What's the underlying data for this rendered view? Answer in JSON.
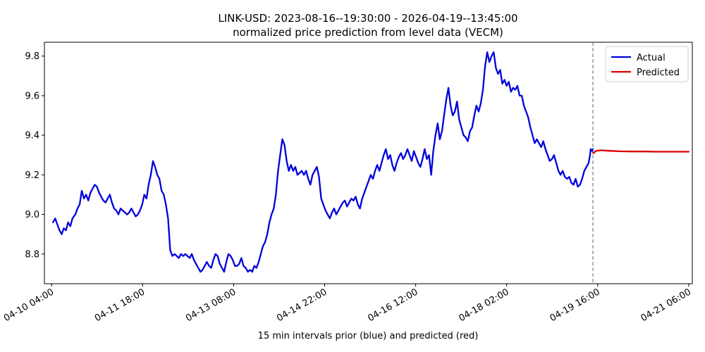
{
  "chart_data": {
    "type": "line",
    "title": "LINK-USD: 2023-08-16--19:30:00 - 2026-04-19--13:45:00",
    "subtitle": "normalized price prediction from level data (VECM)",
    "xlabel": "15 min intervals prior (blue) and predicted (red)",
    "ylabel": "",
    "x_tick_labels": [
      "04-10 04:00",
      "04-11 18:00",
      "04-13 08:00",
      "04-14 22:00",
      "04-16 12:00",
      "04-18 02:00",
      "04-19 16:00",
      "04-21 06:00"
    ],
    "y_ticks": [
      8.8,
      9.0,
      9.2,
      9.4,
      9.6,
      9.8
    ],
    "ylim": [
      8.65,
      9.87
    ],
    "x_index_range": [
      -12,
      792
    ],
    "x_tick_index": [
      0,
      152,
      304,
      456,
      608,
      760,
      912,
      1064
    ],
    "forecast_start_index": 904,
    "legend": {
      "position": "top-right",
      "entries": [
        "Actual",
        "Predicted"
      ]
    },
    "grid": false,
    "series": [
      {
        "name": "Actual",
        "color": "#0000dd",
        "points": [
          [
            2,
            8.96
          ],
          [
            5,
            8.98
          ],
          [
            8,
            8.95
          ],
          [
            11,
            8.92
          ],
          [
            14,
            8.9
          ],
          [
            17,
            8.93
          ],
          [
            20,
            8.92
          ],
          [
            23,
            8.96
          ],
          [
            26,
            8.94
          ],
          [
            29,
            8.98
          ],
          [
            33,
            9.0
          ],
          [
            36,
            9.03
          ],
          [
            39,
            9.05
          ],
          [
            42,
            9.12
          ],
          [
            45,
            9.08
          ],
          [
            48,
            9.1
          ],
          [
            51,
            9.07
          ],
          [
            54,
            9.11
          ],
          [
            57,
            9.13
          ],
          [
            60,
            9.15
          ],
          [
            63,
            9.14
          ],
          [
            66,
            9.11
          ],
          [
            69,
            9.09
          ],
          [
            72,
            9.07
          ],
          [
            75,
            9.06
          ],
          [
            78,
            9.08
          ],
          [
            81,
            9.1
          ],
          [
            84,
            9.06
          ],
          [
            87,
            9.03
          ],
          [
            90,
            9.02
          ],
          [
            93,
            9.0
          ],
          [
            96,
            9.03
          ],
          [
            99,
            9.02
          ],
          [
            102,
            9.01
          ],
          [
            105,
            9.0
          ],
          [
            108,
            9.01
          ],
          [
            111,
            9.03
          ],
          [
            114,
            9.01
          ],
          [
            117,
            8.99
          ],
          [
            120,
            9.0
          ],
          [
            123,
            9.02
          ],
          [
            126,
            9.05
          ],
          [
            129,
            9.1
          ],
          [
            132,
            9.08
          ],
          [
            135,
            9.15
          ],
          [
            138,
            9.2
          ],
          [
            141,
            9.27
          ],
          [
            144,
            9.24
          ],
          [
            147,
            9.2
          ],
          [
            150,
            9.18
          ],
          [
            153,
            9.12
          ],
          [
            156,
            9.1
          ],
          [
            159,
            9.05
          ],
          [
            162,
            8.98
          ],
          [
            165,
            8.82
          ],
          [
            168,
            8.79
          ],
          [
            171,
            8.8
          ],
          [
            174,
            8.79
          ],
          [
            177,
            8.78
          ],
          [
            180,
            8.8
          ],
          [
            183,
            8.79
          ],
          [
            186,
            8.8
          ],
          [
            189,
            8.79
          ],
          [
            192,
            8.78
          ],
          [
            195,
            8.8
          ],
          [
            198,
            8.77
          ],
          [
            201,
            8.75
          ],
          [
            204,
            8.73
          ],
          [
            207,
            8.71
          ],
          [
            210,
            8.72
          ],
          [
            213,
            8.74
          ],
          [
            216,
            8.76
          ],
          [
            219,
            8.74
          ],
          [
            222,
            8.73
          ],
          [
            225,
            8.77
          ],
          [
            228,
            8.8
          ],
          [
            231,
            8.79
          ],
          [
            234,
            8.75
          ],
          [
            237,
            8.73
          ],
          [
            240,
            8.71
          ],
          [
            243,
            8.76
          ],
          [
            246,
            8.8
          ],
          [
            249,
            8.79
          ],
          [
            252,
            8.77
          ],
          [
            255,
            8.74
          ],
          [
            258,
            8.74
          ],
          [
            261,
            8.75
          ],
          [
            264,
            8.78
          ],
          [
            267,
            8.74
          ],
          [
            270,
            8.73
          ],
          [
            273,
            8.71
          ],
          [
            276,
            8.72
          ],
          [
            279,
            8.71
          ],
          [
            282,
            8.74
          ],
          [
            285,
            8.73
          ],
          [
            288,
            8.76
          ],
          [
            291,
            8.8
          ],
          [
            294,
            8.84
          ],
          [
            297,
            8.86
          ],
          [
            300,
            8.9
          ],
          [
            303,
            8.96
          ],
          [
            306,
            9.0
          ],
          [
            309,
            9.03
          ],
          [
            312,
            9.1
          ],
          [
            315,
            9.22
          ],
          [
            318,
            9.3
          ],
          [
            321,
            9.38
          ],
          [
            324,
            9.35
          ],
          [
            327,
            9.27
          ],
          [
            330,
            9.22
          ],
          [
            333,
            9.25
          ],
          [
            336,
            9.22
          ],
          [
            339,
            9.24
          ],
          [
            342,
            9.2
          ],
          [
            345,
            9.21
          ],
          [
            348,
            9.22
          ],
          [
            351,
            9.2
          ],
          [
            354,
            9.22
          ],
          [
            357,
            9.18
          ],
          [
            360,
            9.15
          ],
          [
            363,
            9.2
          ],
          [
            366,
            9.22
          ],
          [
            369,
            9.24
          ],
          [
            372,
            9.19
          ],
          [
            375,
            9.08
          ],
          [
            378,
            9.05
          ],
          [
            381,
            9.02
          ],
          [
            384,
            9.0
          ],
          [
            387,
            8.98
          ],
          [
            390,
            9.01
          ],
          [
            393,
            9.03
          ],
          [
            396,
            9.0
          ],
          [
            399,
            9.02
          ],
          [
            402,
            9.04
          ],
          [
            405,
            9.06
          ],
          [
            408,
            9.07
          ],
          [
            411,
            9.04
          ],
          [
            414,
            9.06
          ],
          [
            417,
            9.08
          ],
          [
            420,
            9.07
          ],
          [
            423,
            9.09
          ],
          [
            426,
            9.05
          ],
          [
            429,
            9.03
          ],
          [
            432,
            9.08
          ],
          [
            435,
            9.11
          ],
          [
            438,
            9.14
          ],
          [
            441,
            9.17
          ],
          [
            444,
            9.2
          ],
          [
            447,
            9.18
          ],
          [
            450,
            9.22
          ],
          [
            453,
            9.25
          ],
          [
            456,
            9.22
          ],
          [
            459,
            9.26
          ],
          [
            462,
            9.3
          ],
          [
            465,
            9.33
          ],
          [
            468,
            9.28
          ],
          [
            471,
            9.3
          ],
          [
            474,
            9.25
          ],
          [
            477,
            9.22
          ],
          [
            480,
            9.26
          ],
          [
            483,
            9.29
          ],
          [
            486,
            9.31
          ],
          [
            489,
            9.28
          ],
          [
            492,
            9.3
          ],
          [
            495,
            9.33
          ],
          [
            498,
            9.3
          ],
          [
            501,
            9.27
          ],
          [
            504,
            9.32
          ],
          [
            507,
            9.29
          ],
          [
            510,
            9.26
          ],
          [
            513,
            9.24
          ],
          [
            516,
            9.28
          ],
          [
            519,
            9.33
          ],
          [
            522,
            9.28
          ],
          [
            525,
            9.3
          ],
          [
            528,
            9.2
          ],
          [
            531,
            9.32
          ],
          [
            534,
            9.4
          ],
          [
            537,
            9.46
          ],
          [
            540,
            9.38
          ],
          [
            543,
            9.42
          ],
          [
            546,
            9.5
          ],
          [
            549,
            9.58
          ],
          [
            552,
            9.64
          ],
          [
            555,
            9.55
          ],
          [
            558,
            9.5
          ],
          [
            561,
            9.52
          ],
          [
            564,
            9.57
          ],
          [
            567,
            9.48
          ],
          [
            570,
            9.44
          ],
          [
            573,
            9.4
          ],
          [
            576,
            9.39
          ],
          [
            579,
            9.37
          ],
          [
            582,
            9.42
          ],
          [
            585,
            9.44
          ],
          [
            588,
            9.5
          ],
          [
            591,
            9.55
          ],
          [
            594,
            9.52
          ],
          [
            597,
            9.56
          ],
          [
            600,
            9.63
          ],
          [
            603,
            9.75
          ],
          [
            606,
            9.82
          ],
          [
            609,
            9.77
          ],
          [
            612,
            9.8
          ],
          [
            615,
            9.82
          ],
          [
            618,
            9.74
          ],
          [
            621,
            9.71
          ],
          [
            624,
            9.73
          ],
          [
            627,
            9.66
          ],
          [
            630,
            9.68
          ],
          [
            633,
            9.65
          ],
          [
            636,
            9.67
          ],
          [
            639,
            9.62
          ],
          [
            642,
            9.64
          ],
          [
            645,
            9.63
          ],
          [
            648,
            9.65
          ],
          [
            651,
            9.6
          ],
          [
            654,
            9.6
          ],
          [
            657,
            9.55
          ],
          [
            660,
            9.52
          ],
          [
            663,
            9.49
          ],
          [
            666,
            9.44
          ],
          [
            669,
            9.4
          ],
          [
            672,
            9.36
          ],
          [
            675,
            9.38
          ],
          [
            678,
            9.36
          ],
          [
            681,
            9.34
          ],
          [
            684,
            9.37
          ],
          [
            687,
            9.33
          ],
          [
            690,
            9.3
          ],
          [
            693,
            9.27
          ],
          [
            696,
            9.28
          ],
          [
            699,
            9.3
          ],
          [
            702,
            9.26
          ],
          [
            705,
            9.22
          ],
          [
            708,
            9.2
          ],
          [
            711,
            9.22
          ],
          [
            714,
            9.19
          ],
          [
            717,
            9.18
          ],
          [
            720,
            9.19
          ],
          [
            723,
            9.16
          ],
          [
            726,
            9.15
          ],
          [
            729,
            9.18
          ],
          [
            732,
            9.14
          ],
          [
            735,
            9.15
          ],
          [
            738,
            9.18
          ],
          [
            741,
            9.22
          ],
          [
            744,
            9.24
          ],
          [
            747,
            9.26
          ],
          [
            749,
            9.3
          ],
          [
            750,
            9.33
          ],
          [
            752,
            9.32
          ],
          [
            753,
            9.33
          ]
        ]
      },
      {
        "name": "Predicted",
        "color": "#dd0000",
        "points": [
          [
            753,
            9.31
          ],
          [
            756,
            9.31
          ],
          [
            760,
            9.318
          ],
          [
            766,
            9.322
          ],
          [
            772,
            9.323
          ],
          [
            780,
            9.324
          ],
          [
            790,
            9.323
          ],
          [
            810,
            9.321
          ],
          [
            840,
            9.319
          ],
          [
            880,
            9.318
          ],
          [
            920,
            9.318
          ],
          [
            960,
            9.317
          ],
          [
            1000,
            9.317
          ],
          [
            1040,
            9.317
          ],
          [
            1064,
            9.317
          ]
        ]
      }
    ]
  }
}
